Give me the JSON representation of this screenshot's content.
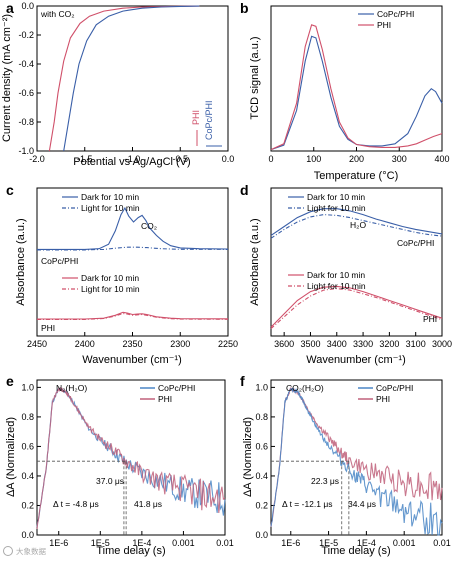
{
  "figure": {
    "watermark": "大象数据"
  },
  "chart_data": [
    {
      "id": "a",
      "panel_label": "a",
      "type": "line",
      "xlabel": "Potential vs Ag/AgCl (V)",
      "ylabel": "Current density (mA cm⁻²)",
      "xlim": [
        -2.0,
        0.0
      ],
      "ylim": [
        -1.0,
        0.0
      ],
      "xticks": [
        "-2.0",
        "-1.5",
        "-1.0",
        "-0.5",
        "0.0"
      ],
      "yticks": [
        "0.0",
        "-0.2",
        "-0.4",
        "-0.6",
        "-0.8",
        "-1.0"
      ],
      "annotation": "with CO₂",
      "legend": [
        "PHI",
        "CoPc/PHI"
      ],
      "series": [
        {
          "name": "PHI",
          "color": "#d0506a",
          "x": [
            -1.87,
            -1.82,
            -1.78,
            -1.72,
            -1.65,
            -1.55,
            -1.45,
            -1.3,
            -1.1,
            -0.9,
            -0.6,
            -0.3
          ],
          "y": [
            -1.0,
            -0.8,
            -0.6,
            -0.38,
            -0.22,
            -0.12,
            -0.07,
            -0.035,
            -0.015,
            -0.007,
            -0.003,
            -0.001
          ]
        },
        {
          "name": "CoPc/PHI",
          "color": "#3a5fa8",
          "x": [
            -1.72,
            -1.67,
            -1.62,
            -1.56,
            -1.48,
            -1.38,
            -1.25,
            -1.1,
            -0.9,
            -0.7,
            -0.5,
            -0.3
          ],
          "y": [
            -1.0,
            -0.8,
            -0.6,
            -0.4,
            -0.24,
            -0.13,
            -0.07,
            -0.035,
            -0.015,
            -0.007,
            -0.003,
            -0.001
          ]
        }
      ]
    },
    {
      "id": "b",
      "panel_label": "b",
      "type": "line",
      "xlabel": "Temperature (°C)",
      "ylabel": "TCD signal (a.u.)",
      "xlim": [
        0,
        400
      ],
      "xticks": [
        "0",
        "100",
        "200",
        "300",
        "400"
      ],
      "legend": [
        "CoPc/PHI",
        "PHI"
      ],
      "series": [
        {
          "name": "CoPc/PHI",
          "color": "#3a5fa8",
          "x": [
            0,
            30,
            60,
            80,
            95,
            105,
            120,
            140,
            160,
            180,
            200,
            230,
            260,
            290,
            320,
            340,
            360,
            375,
            385,
            400
          ],
          "y": [
            0.01,
            0.04,
            0.28,
            0.62,
            0.79,
            0.78,
            0.62,
            0.37,
            0.17,
            0.08,
            0.045,
            0.035,
            0.035,
            0.05,
            0.12,
            0.24,
            0.38,
            0.43,
            0.41,
            0.33
          ]
        },
        {
          "name": "PHI",
          "color": "#d0506a",
          "x": [
            0,
            30,
            60,
            80,
            95,
            105,
            120,
            140,
            160,
            180,
            200,
            230,
            260,
            290,
            320,
            340,
            360,
            380,
            400
          ],
          "y": [
            0.01,
            0.05,
            0.33,
            0.72,
            0.87,
            0.86,
            0.7,
            0.43,
            0.2,
            0.09,
            0.045,
            0.03,
            0.025,
            0.025,
            0.035,
            0.05,
            0.075,
            0.1,
            0.12
          ]
        }
      ]
    },
    {
      "id": "c",
      "panel_label": "c",
      "type": "line",
      "xlabel": "Wavenumber (cm⁻¹)",
      "ylabel": "Absorbance (a.u.)",
      "xlim": [
        2450,
        2250
      ],
      "xticks": [
        "2450",
        "2400",
        "2350",
        "2300",
        "2250"
      ],
      "labels": {
        "upper": "CoPc/PHI",
        "lower": "PHI",
        "peak": "CO₂"
      },
      "legend_upper": [
        "Dark for 10 min",
        "Light for 10 min"
      ],
      "legend_lower": [
        "Dark for 10 min",
        "Light for 10 min"
      ],
      "series": [
        {
          "name": "CoPc/PHI dark",
          "color": "#3a5fa8",
          "dash": "",
          "x": [
            2450,
            2400,
            2385,
            2375,
            2368,
            2362,
            2358,
            2354,
            2349,
            2344,
            2340,
            2336,
            2332,
            2325,
            2318,
            2310,
            2300,
            2280,
            2250
          ],
          "y": [
            0.585,
            0.585,
            0.59,
            0.62,
            0.71,
            0.82,
            0.865,
            0.81,
            0.77,
            0.8,
            0.815,
            0.78,
            0.73,
            0.68,
            0.64,
            0.61,
            0.595,
            0.59,
            0.588
          ]
        },
        {
          "name": "CoPc/PHI light",
          "color": "#3a5fa8",
          "dash": "4 2 1 2",
          "x": [
            2450,
            2400,
            2380,
            2365,
            2355,
            2345,
            2335,
            2320,
            2300,
            2250
          ],
          "y": [
            0.582,
            0.582,
            0.585,
            0.595,
            0.6,
            0.6,
            0.597,
            0.59,
            0.586,
            0.585
          ]
        },
        {
          "name": "PHI dark",
          "color": "#d0506a",
          "dash": "",
          "x": [
            2450,
            2400,
            2380,
            2368,
            2360,
            2355,
            2350,
            2345,
            2340,
            2335,
            2325,
            2310,
            2300,
            2250
          ],
          "y": [
            0.115,
            0.115,
            0.12,
            0.14,
            0.16,
            0.155,
            0.145,
            0.148,
            0.15,
            0.145,
            0.13,
            0.12,
            0.117,
            0.116
          ]
        },
        {
          "name": "PHI light",
          "color": "#d0506a",
          "dash": "4 2 1 2",
          "x": [
            2450,
            2400,
            2380,
            2368,
            2360,
            2355,
            2350,
            2345,
            2340,
            2335,
            2325,
            2310,
            2300,
            2250
          ],
          "y": [
            0.112,
            0.112,
            0.118,
            0.135,
            0.152,
            0.148,
            0.14,
            0.143,
            0.145,
            0.14,
            0.127,
            0.117,
            0.114,
            0.113
          ]
        }
      ]
    },
    {
      "id": "d",
      "panel_label": "d",
      "type": "line",
      "xlabel": "Wavenumber (cm⁻¹)",
      "ylabel": "Absorbance (a.u.)",
      "xlim": [
        3650,
        3000
      ],
      "xticks": [
        "3600",
        "3500",
        "3400",
        "3300",
        "3200",
        "3100",
        "3000"
      ],
      "labels": {
        "upper": "CoPc/PHI",
        "lower": "PHI",
        "peak": "H₂O"
      },
      "legend_upper": [
        "Dark for 10 min",
        "Light for 10 min"
      ],
      "legend_lower": [
        "Dark for 10 min",
        "Light for 10 min"
      ],
      "series": [
        {
          "name": "CoPc/PHI dark",
          "color": "#3a5fa8",
          "dash": "",
          "x": [
            3650,
            3600,
            3550,
            3500,
            3450,
            3400,
            3350,
            3300,
            3250,
            3200,
            3150,
            3100,
            3050,
            3000
          ],
          "y": [
            0.68,
            0.74,
            0.8,
            0.84,
            0.86,
            0.86,
            0.845,
            0.82,
            0.79,
            0.765,
            0.74,
            0.72,
            0.705,
            0.69
          ]
        },
        {
          "name": "CoPc/PHI light",
          "color": "#3a5fa8",
          "dash": "4 2 1 2",
          "x": [
            3650,
            3600,
            3550,
            3500,
            3450,
            3400,
            3350,
            3300,
            3250,
            3200,
            3150,
            3100,
            3050,
            3000
          ],
          "y": [
            0.66,
            0.72,
            0.77,
            0.805,
            0.82,
            0.815,
            0.8,
            0.78,
            0.76,
            0.74,
            0.72,
            0.7,
            0.685,
            0.675
          ]
        },
        {
          "name": "PHI dark",
          "color": "#d0506a",
          "dash": "",
          "x": [
            3650,
            3600,
            3550,
            3500,
            3450,
            3400,
            3350,
            3300,
            3250,
            3200,
            3150,
            3100,
            3050,
            3000
          ],
          "y": [
            0.06,
            0.15,
            0.24,
            0.3,
            0.33,
            0.335,
            0.325,
            0.3,
            0.27,
            0.24,
            0.21,
            0.18,
            0.15,
            0.12
          ]
        },
        {
          "name": "PHI light",
          "color": "#d0506a",
          "dash": "4 2 1 2",
          "x": [
            3650,
            3600,
            3550,
            3500,
            3450,
            3400,
            3350,
            3300,
            3250,
            3200,
            3150,
            3100,
            3050,
            3000
          ],
          "y": [
            0.05,
            0.13,
            0.21,
            0.27,
            0.31,
            0.32,
            0.31,
            0.285,
            0.26,
            0.23,
            0.2,
            0.17,
            0.14,
            0.11
          ]
        }
      ]
    },
    {
      "id": "e",
      "panel_label": "e",
      "type": "line",
      "xscale": "log",
      "xlabel": "Time delay (s)",
      "ylabel": "ΔA (Normalized)",
      "xlim": [
        3e-07,
        0.01
      ],
      "ylim": [
        0.0,
        1.05
      ],
      "xticks": [
        "1E-6",
        "1E-5",
        "1E-4",
        "0.001",
        "0.01"
      ],
      "yticks": [
        "0.0",
        "0.2",
        "0.4",
        "0.6",
        "0.8",
        "1.0"
      ],
      "title": "N₂(H₂O)",
      "annotations": [
        "37.0 μs",
        "41.8 μs",
        "Δ t = -4.8 μs"
      ],
      "legend": [
        "CoPc/PHI",
        "PHI"
      ],
      "series": [
        {
          "name": "CoPc/PHI",
          "color": "#4a86c6",
          "x": [
            3e-07,
            5e-07,
            7e-07,
            1e-06,
            1.5e-06,
            2e-06,
            3e-06,
            5e-06,
            1e-05,
            2e-05,
            3.7e-05,
            0.0001,
            0.0003,
            0.001,
            0.003,
            0.01
          ],
          "y": [
            0.05,
            0.45,
            0.9,
            0.99,
            0.97,
            0.92,
            0.84,
            0.73,
            0.64,
            0.57,
            0.5,
            0.42,
            0.36,
            0.3,
            0.27,
            0.24
          ]
        },
        {
          "name": "PHI",
          "color": "#c0607a",
          "x": [
            3e-07,
            5e-07,
            7e-07,
            1e-06,
            1.5e-06,
            2e-06,
            3e-06,
            5e-06,
            1e-05,
            2e-05,
            4.18e-05,
            0.0001,
            0.0003,
            0.001,
            0.003,
            0.01
          ],
          "y": [
            0.05,
            0.45,
            0.9,
            0.99,
            0.97,
            0.92,
            0.84,
            0.74,
            0.65,
            0.58,
            0.5,
            0.42,
            0.36,
            0.31,
            0.27,
            0.25
          ]
        }
      ]
    },
    {
      "id": "f",
      "panel_label": "f",
      "type": "line",
      "xscale": "log",
      "xlabel": "Time delay (s)",
      "ylabel": "ΔA (Normalized)",
      "xlim": [
        3e-07,
        0.01
      ],
      "ylim": [
        0.0,
        1.05
      ],
      "xticks": [
        "1E-6",
        "1E-5",
        "1E-4",
        "0.001",
        "0.01"
      ],
      "yticks": [
        "0.0",
        "0.2",
        "0.4",
        "0.6",
        "0.8",
        "1.0"
      ],
      "title": "CO₂(H₂O)",
      "annotations": [
        "22.3 μs",
        "34.4 μs",
        "Δ t = -12.1 μs"
      ],
      "legend": [
        "CoPc/PHI",
        "PHI"
      ],
      "series": [
        {
          "name": "PHI",
          "color": "#c0607a",
          "x": [
            3e-07,
            5e-07,
            7e-07,
            1e-06,
            1.5e-06,
            2e-06,
            3e-06,
            5e-06,
            1e-05,
            2e-05,
            3.44e-05,
            0.0001,
            0.0003,
            0.001,
            0.003,
            0.01
          ],
          "y": [
            0.05,
            0.45,
            0.9,
            0.99,
            0.97,
            0.92,
            0.84,
            0.75,
            0.66,
            0.57,
            0.5,
            0.44,
            0.4,
            0.36,
            0.34,
            0.32
          ]
        },
        {
          "name": "CoPc/PHI",
          "color": "#4a86c6",
          "x": [
            3e-07,
            5e-07,
            7e-07,
            1e-06,
            1.5e-06,
            2e-06,
            3e-06,
            5e-06,
            1e-05,
            2.23e-05,
            5e-05,
            0.0001,
            0.0003,
            0.001,
            0.003,
            0.01
          ],
          "y": [
            0.05,
            0.45,
            0.9,
            0.99,
            0.97,
            0.92,
            0.83,
            0.72,
            0.61,
            0.5,
            0.4,
            0.33,
            0.24,
            0.17,
            0.12,
            0.08
          ]
        }
      ]
    }
  ]
}
